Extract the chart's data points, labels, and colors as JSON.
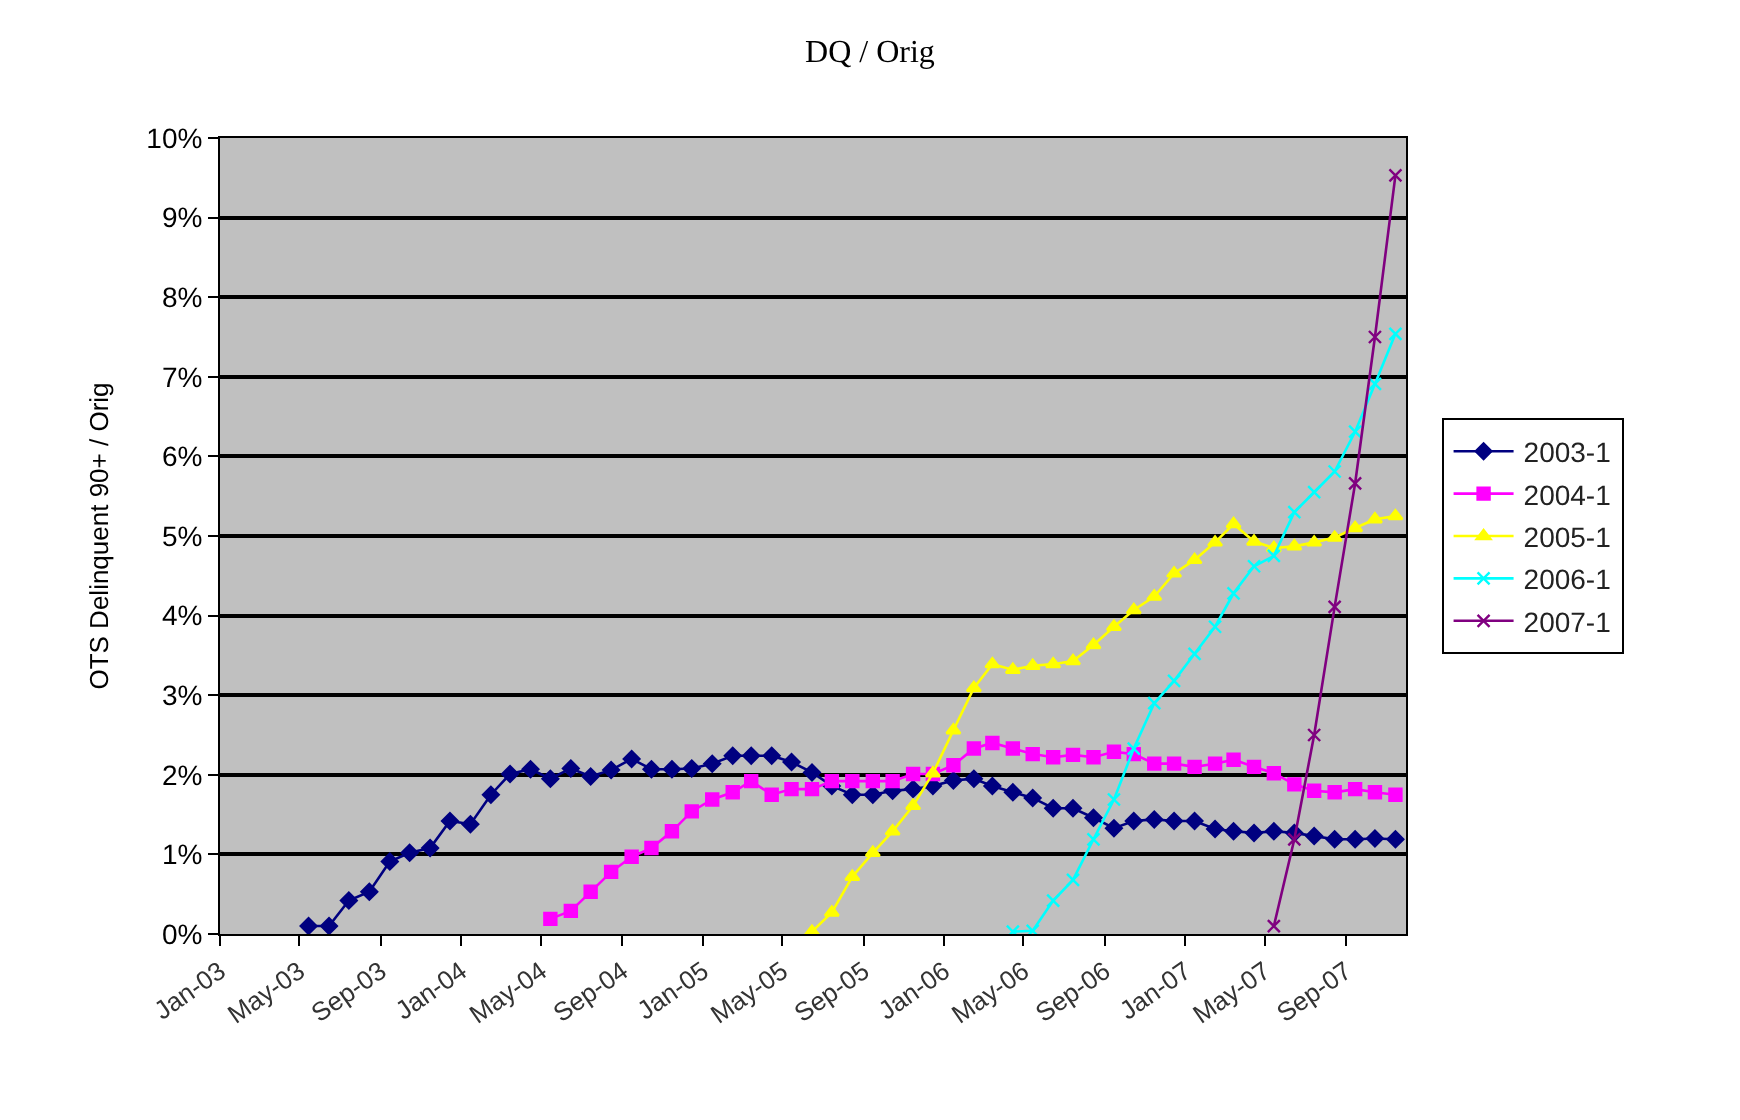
{
  "chart_data": {
    "type": "line",
    "title": "DQ / Orig",
    "ylabel": "OTS Delinquent 90+ / Orig",
    "xlim": [
      "2003-01-01",
      "2007-12-01"
    ],
    "xticks": [
      {
        "value": "2003-01-01",
        "label": "Jan-03"
      },
      {
        "value": "2003-05-01",
        "label": "May-03"
      },
      {
        "value": "2003-09-01",
        "label": "Sep-03"
      },
      {
        "value": "2004-01-01",
        "label": "Jan-04"
      },
      {
        "value": "2004-05-01",
        "label": "May-04"
      },
      {
        "value": "2004-09-01",
        "label": "Sep-04"
      },
      {
        "value": "2005-01-01",
        "label": "Jan-05"
      },
      {
        "value": "2005-05-01",
        "label": "May-05"
      },
      {
        "value": "2005-09-01",
        "label": "Sep-05"
      },
      {
        "value": "2006-01-01",
        "label": "Jan-06"
      },
      {
        "value": "2006-05-01",
        "label": "May-06"
      },
      {
        "value": "2006-09-01",
        "label": "Sep-06"
      },
      {
        "value": "2007-01-01",
        "label": "Jan-07"
      },
      {
        "value": "2007-05-01",
        "label": "May-07"
      },
      {
        "value": "2007-09-01",
        "label": "Sep-07"
      }
    ],
    "ylim": [
      0,
      10
    ],
    "yticks": [
      {
        "value": 0,
        "label": "0%"
      },
      {
        "value": 1,
        "label": "1%"
      },
      {
        "value": 2,
        "label": "2%"
      },
      {
        "value": 3,
        "label": "3%"
      },
      {
        "value": 4,
        "label": "4%"
      },
      {
        "value": 5,
        "label": "5%"
      },
      {
        "value": 6,
        "label": "6%"
      },
      {
        "value": 7,
        "label": "7%"
      },
      {
        "value": 8,
        "label": "8%"
      },
      {
        "value": 9,
        "label": "9%"
      },
      {
        "value": 10,
        "label": "10%"
      }
    ],
    "grid": "y",
    "legend": "right",
    "line_style": "solid",
    "series": [
      {
        "name": "2003-1",
        "color": "#000080",
        "marker": "diamond",
        "x": [
          "2003-05-15",
          "2003-06-15",
          "2003-07-15",
          "2003-08-15",
          "2003-09-15",
          "2003-10-15",
          "2003-11-15",
          "2003-12-15",
          "2004-01-15",
          "2004-02-15",
          "2004-03-15",
          "2004-04-15",
          "2004-05-15",
          "2004-06-15",
          "2004-07-15",
          "2004-08-15",
          "2004-09-15",
          "2004-10-15",
          "2004-11-15",
          "2004-12-15",
          "2005-01-15",
          "2005-02-15",
          "2005-03-15",
          "2005-04-15",
          "2005-05-15",
          "2005-06-15",
          "2005-07-15",
          "2005-08-15",
          "2005-09-15",
          "2005-10-15",
          "2005-11-15",
          "2005-12-15",
          "2006-01-15",
          "2006-02-15",
          "2006-03-15",
          "2006-04-15",
          "2006-05-15",
          "2006-06-15",
          "2006-07-15",
          "2006-08-15",
          "2006-09-15",
          "2006-10-15",
          "2006-11-15",
          "2006-12-15",
          "2007-01-15",
          "2007-02-15",
          "2007-03-15",
          "2007-04-15",
          "2007-05-15",
          "2007-06-15",
          "2007-07-15",
          "2007-08-15",
          "2007-09-15",
          "2007-10-15",
          "2007-11-15"
        ],
        "values": [
          0.1,
          0.1,
          0.42,
          0.53,
          0.91,
          1.02,
          1.08,
          1.42,
          1.38,
          1.75,
          2.01,
          2.07,
          1.95,
          2.08,
          1.98,
          2.06,
          2.2,
          2.07,
          2.07,
          2.08,
          2.14,
          2.24,
          2.24,
          2.24,
          2.16,
          2.03,
          1.86,
          1.75,
          1.75,
          1.8,
          1.82,
          1.86,
          1.93,
          1.95,
          1.86,
          1.78,
          1.71,
          1.58,
          1.58,
          1.46,
          1.33,
          1.42,
          1.44,
          1.42,
          1.42,
          1.32,
          1.29,
          1.27,
          1.29,
          1.27,
          1.23,
          1.19,
          1.19,
          1.2,
          1.19
        ]
      },
      {
        "name": "2004-1",
        "color": "#ff00ff",
        "marker": "square",
        "x": [
          "2004-05-15",
          "2004-06-15",
          "2004-07-15",
          "2004-08-15",
          "2004-09-15",
          "2004-10-15",
          "2004-11-15",
          "2004-12-15",
          "2005-01-15",
          "2005-02-15",
          "2005-03-15",
          "2005-04-15",
          "2005-05-15",
          "2005-06-15",
          "2005-07-15",
          "2005-08-15",
          "2005-09-15",
          "2005-10-15",
          "2005-11-15",
          "2005-12-15",
          "2006-01-15",
          "2006-02-15",
          "2006-03-15",
          "2006-04-15",
          "2006-05-15",
          "2006-06-15",
          "2006-07-15",
          "2006-08-15",
          "2006-09-15",
          "2006-10-15",
          "2006-11-15",
          "2006-12-15",
          "2007-01-15",
          "2007-02-15",
          "2007-03-15",
          "2007-04-15",
          "2007-05-15",
          "2007-06-15",
          "2007-07-15",
          "2007-08-15",
          "2007-09-15",
          "2007-10-15",
          "2007-11-15"
        ],
        "values": [
          0.19,
          0.29,
          0.53,
          0.78,
          0.97,
          1.08,
          1.29,
          1.54,
          1.69,
          1.78,
          1.92,
          1.75,
          1.82,
          1.82,
          1.92,
          1.92,
          1.92,
          1.92,
          2.01,
          2.01,
          2.12,
          2.33,
          2.4,
          2.33,
          2.26,
          2.22,
          2.25,
          2.22,
          2.29,
          2.26,
          2.14,
          2.14,
          2.1,
          2.14,
          2.19,
          2.1,
          2.02,
          1.88,
          1.8,
          1.78,
          1.82,
          1.78,
          1.75
        ]
      },
      {
        "name": "2005-1",
        "color": "#ffff00",
        "marker": "triangle",
        "x": [
          "2005-06-15",
          "2005-07-15",
          "2005-08-15",
          "2005-09-15",
          "2005-10-15",
          "2005-11-15",
          "2005-12-15",
          "2006-01-15",
          "2006-02-15",
          "2006-03-15",
          "2006-04-15",
          "2006-05-15",
          "2006-06-15",
          "2006-07-15",
          "2006-08-15",
          "2006-09-15",
          "2006-10-15",
          "2006-11-15",
          "2006-12-15",
          "2007-01-15",
          "2007-02-15",
          "2007-03-15",
          "2007-04-15",
          "2007-05-15",
          "2007-06-15",
          "2007-07-15",
          "2007-08-15",
          "2007-09-15",
          "2007-10-15",
          "2007-11-15"
        ],
        "values": [
          0.03,
          0.27,
          0.72,
          1.02,
          1.29,
          1.61,
          2.02,
          2.56,
          3.09,
          3.39,
          3.32,
          3.37,
          3.39,
          3.43,
          3.63,
          3.86,
          4.07,
          4.24,
          4.53,
          4.7,
          4.92,
          5.15,
          4.93,
          4.85,
          4.87,
          4.92,
          4.98,
          5.1,
          5.21,
          5.25
        ]
      },
      {
        "name": "2006-1",
        "color": "#00ffff",
        "marker": "cross",
        "x": [
          "2006-04-15",
          "2006-05-15",
          "2006-06-15",
          "2006-07-15",
          "2006-08-15",
          "2006-09-15",
          "2006-10-15",
          "2006-11-15",
          "2006-12-15",
          "2007-01-15",
          "2007-02-15",
          "2007-03-15",
          "2007-04-15",
          "2007-05-15",
          "2007-06-15",
          "2007-07-15",
          "2007-08-15",
          "2007-09-15",
          "2007-10-15",
          "2007-11-15"
        ],
        "values": [
          0.03,
          0.04,
          0.42,
          0.68,
          1.19,
          1.69,
          2.33,
          2.9,
          3.18,
          3.52,
          3.86,
          4.28,
          4.62,
          4.75,
          5.3,
          5.55,
          5.81,
          6.31,
          6.91,
          7.54
        ]
      },
      {
        "name": "2007-1",
        "color": "#800080",
        "marker": "cross",
        "x": [
          "2007-05-15",
          "2007-06-15",
          "2007-07-15",
          "2007-08-15",
          "2007-09-15",
          "2007-10-15",
          "2007-11-15"
        ],
        "values": [
          0.1,
          1.19,
          2.5,
          4.11,
          5.66,
          7.5,
          9.53
        ]
      }
    ]
  }
}
